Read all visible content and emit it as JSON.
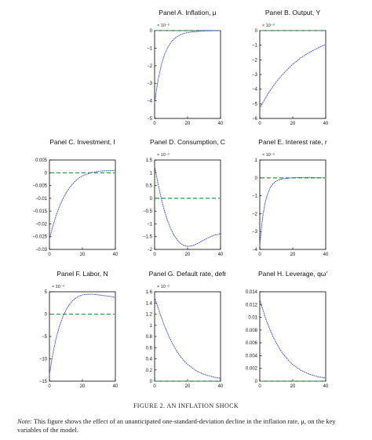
{
  "figure": {
    "caption": "FIGURE 2. AN INFLATION SHOCK",
    "note_label": "Note:",
    "note_text": "This figure shows the effect of an unanticipated one-standard-deviation decline in the inflation rate, μ, on the key variables of the model."
  },
  "colors": {
    "curve": "#3a4fd0",
    "baseline": "#1f8a3a",
    "axis": "#000000"
  },
  "chart_data": [
    {
      "id": "A",
      "type": "line",
      "title": "Panel A. Inflation, μ",
      "multiplier": "× 10⁻³",
      "xlim": [
        0,
        40
      ],
      "ylim": [
        -5,
        0
      ],
      "xticks": [
        0,
        20,
        40
      ],
      "yticks": [
        0,
        -1,
        -2,
        -3,
        -4,
        -5
      ],
      "yticklabels": [
        "0",
        "−1",
        "−2",
        "−3",
        "−4",
        "−5"
      ],
      "series": [
        {
          "style": "dotted",
          "x": [
            0,
            2,
            4,
            6,
            8,
            10,
            12,
            14,
            16,
            18,
            20,
            25,
            30,
            35,
            40
          ],
          "y": [
            -4.1,
            -2.85,
            -1.98,
            -1.37,
            -0.95,
            -0.66,
            -0.46,
            -0.32,
            -0.22,
            -0.15,
            -0.11,
            -0.05,
            -0.02,
            -0.01,
            0.0
          ]
        }
      ],
      "baseline": 0
    },
    {
      "id": "B",
      "type": "line",
      "title": "Panel B. Output, Y",
      "multiplier": "× 10⁻³",
      "xlim": [
        0,
        40
      ],
      "ylim": [
        -6,
        0
      ],
      "xticks": [
        0,
        20,
        40
      ],
      "yticks": [
        0,
        -1,
        -2,
        -3,
        -4,
        -5,
        -6
      ],
      "yticklabels": [
        "0",
        "−1",
        "−2",
        "−3",
        "−4",
        "−5",
        "−6"
      ],
      "series": [
        {
          "style": "dotted",
          "x": [
            0,
            5,
            10,
            15,
            20,
            25,
            30,
            35,
            40
          ],
          "y": [
            -5.3,
            -4.3,
            -3.5,
            -2.85,
            -2.3,
            -1.85,
            -1.5,
            -1.2,
            -0.95
          ]
        }
      ],
      "baseline": 0
    },
    {
      "id": "C",
      "type": "line",
      "title": "Panel C. Investment, I",
      "multiplier": "",
      "xlim": [
        0,
        40
      ],
      "ylim": [
        -0.03,
        0.005
      ],
      "xticks": [
        0,
        20,
        40
      ],
      "yticks": [
        0.005,
        0,
        -0.005,
        -0.01,
        -0.015,
        -0.02,
        -0.025,
        -0.03
      ],
      "yticklabels": [
        "0.005",
        "0",
        "−0.005",
        "−0.01",
        "−0.015",
        "−0.02",
        "−0.025",
        "−0.03"
      ],
      "series": [
        {
          "style": "dotted",
          "x": [
            0,
            2,
            4,
            6,
            8,
            10,
            12,
            14,
            16,
            18,
            20,
            25,
            30,
            35,
            40
          ],
          "y": [
            -0.026,
            -0.021,
            -0.0168,
            -0.0133,
            -0.0104,
            -0.008,
            -0.006,
            -0.0044,
            -0.0031,
            -0.002,
            -0.0012,
            0.0,
            0.0006,
            0.0008,
            0.0008
          ]
        }
      ],
      "baseline": 0
    },
    {
      "id": "D",
      "type": "line",
      "title": "Panel D. Consumption, C",
      "multiplier": "× 10⁻³",
      "xlim": [
        0,
        40
      ],
      "ylim": [
        -2,
        1.5
      ],
      "xticks": [
        0,
        20,
        40
      ],
      "yticks": [
        1.5,
        1,
        0.5,
        0,
        -0.5,
        -1,
        -1.5,
        -2
      ],
      "yticklabels": [
        "1.5",
        "1",
        "0.5",
        "0",
        "−0.5",
        "−1",
        "−1.5",
        "−2"
      ],
      "series": [
        {
          "style": "dotted",
          "x": [
            0,
            2,
            4,
            6,
            8,
            10,
            12,
            14,
            16,
            18,
            20,
            22,
            24,
            26,
            28,
            30,
            32,
            34,
            36,
            38,
            40
          ],
          "y": [
            1.25,
            0.6,
            0.0,
            -0.5,
            -0.9,
            -1.22,
            -1.47,
            -1.65,
            -1.78,
            -1.85,
            -1.88,
            -1.87,
            -1.83,
            -1.77,
            -1.7,
            -1.63,
            -1.56,
            -1.5,
            -1.45,
            -1.42,
            -1.38
          ]
        }
      ],
      "baseline": 0
    },
    {
      "id": "E",
      "type": "line",
      "title": "Panel E. Interest rate, r",
      "multiplier": "× 10⁻³",
      "xlim": [
        0,
        40
      ],
      "ylim": [
        -4,
        1
      ],
      "xticks": [
        0,
        20,
        40
      ],
      "yticks": [
        1,
        0,
        -1,
        -2,
        -3,
        -4
      ],
      "yticklabels": [
        "1",
        "0",
        "−1",
        "−2",
        "−3",
        "−4"
      ],
      "series": [
        {
          "style": "dotted",
          "x": [
            0,
            1,
            2,
            3,
            4,
            6,
            8,
            10,
            12,
            14,
            16,
            20,
            25,
            30,
            35,
            40
          ],
          "y": [
            -3.8,
            -2.8,
            -2.05,
            -1.5,
            -1.1,
            -0.6,
            -0.33,
            -0.18,
            -0.1,
            -0.05,
            -0.03,
            0.0,
            0.02,
            0.02,
            0.01,
            0.0
          ]
        }
      ],
      "baseline": 0
    },
    {
      "id": "F",
      "type": "line",
      "title": "Panel F. Labor, N",
      "multiplier": "× 10⁻⁴",
      "xlim": [
        0,
        40
      ],
      "ylim": [
        -15,
        5
      ],
      "xticks": [
        0,
        20,
        40
      ],
      "yticks": [
        5,
        0,
        -5,
        -10,
        -15
      ],
      "yticklabels": [
        "5",
        "0",
        "−5",
        "−10",
        "−15"
      ],
      "series": [
        {
          "style": "dotted",
          "x": [
            0,
            2,
            4,
            6,
            8,
            10,
            12,
            14,
            16,
            18,
            20,
            22,
            24,
            26,
            28,
            30,
            32,
            34,
            36,
            38,
            40
          ],
          "y": [
            -13.5,
            -9.0,
            -5.5,
            -2.8,
            -0.7,
            0.9,
            2.1,
            3.0,
            3.6,
            4.0,
            4.3,
            4.4,
            4.45,
            4.45,
            4.4,
            4.3,
            4.2,
            4.1,
            4.0,
            3.9,
            3.7
          ]
        }
      ],
      "baseline": 0
    },
    {
      "id": "G",
      "type": "line",
      "title": "Panel G. Default rate, defr",
      "multiplier": "× 10⁻³",
      "xlim": [
        0,
        40
      ],
      "ylim": [
        0,
        1.6
      ],
      "xticks": [
        0,
        20,
        40
      ],
      "yticks": [
        1.6,
        1.4,
        1.2,
        1,
        0.8,
        0.6,
        0.4,
        0.2,
        0
      ],
      "yticklabels": [
        "1.6",
        "1.4",
        "1.2",
        "1",
        "0.8",
        "0.6",
        "0.4",
        "0.2",
        "0"
      ],
      "series": [
        {
          "style": "dotted",
          "x": [
            0,
            2,
            4,
            6,
            8,
            10,
            12,
            14,
            16,
            18,
            20,
            25,
            30,
            35,
            40
          ],
          "y": [
            1.5,
            1.32,
            1.15,
            0.99,
            0.85,
            0.72,
            0.61,
            0.51,
            0.43,
            0.36,
            0.3,
            0.19,
            0.12,
            0.08,
            0.05
          ]
        }
      ],
      "baseline": 0
    },
    {
      "id": "H",
      "type": "line",
      "title": "Panel H. Leverage, qω′",
      "multiplier": "",
      "xlim": [
        0,
        40
      ],
      "ylim": [
        0,
        0.014
      ],
      "xticks": [
        0,
        20,
        40
      ],
      "yticks": [
        0.014,
        0.012,
        0.01,
        0.008,
        0.006,
        0.004,
        0.002,
        0
      ],
      "yticklabels": [
        "0.014",
        "0.012",
        "0.01",
        "0.008",
        "0.006",
        "0.004",
        "0.002",
        "0"
      ],
      "series": [
        {
          "style": "dotted",
          "x": [
            0,
            2,
            4,
            6,
            8,
            10,
            12,
            14,
            16,
            18,
            20,
            25,
            30,
            35,
            40
          ],
          "y": [
            0.0128,
            0.0111,
            0.0095,
            0.0082,
            0.007,
            0.006,
            0.0051,
            0.0043,
            0.0037,
            0.0031,
            0.0026,
            0.0017,
            0.0011,
            0.0007,
            0.0005
          ]
        }
      ],
      "baseline": 0
    }
  ]
}
